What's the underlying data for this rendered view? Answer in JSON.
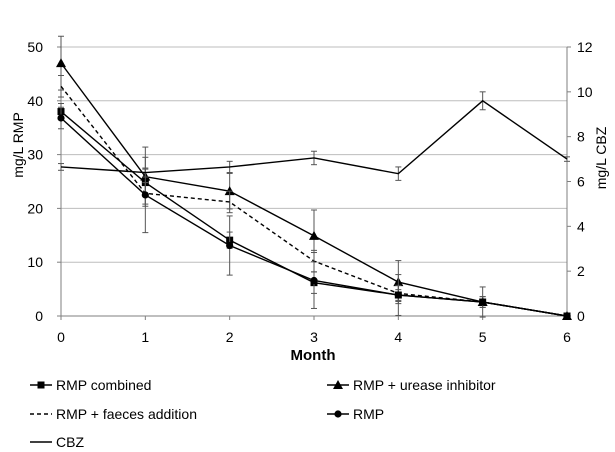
{
  "chart_data": {
    "type": "line",
    "xlabel": "Month",
    "ylabel_left": "mg/L RMP",
    "ylabel_right": "mg/L CBZ",
    "x": [
      0,
      1,
      2,
      3,
      4,
      5,
      6
    ],
    "xlim": [
      0,
      6
    ],
    "ylim_left": [
      0,
      50
    ],
    "ylim_right": [
      0,
      12
    ],
    "yticks_left": [
      0,
      10,
      20,
      30,
      40,
      50
    ],
    "yticks_right": [
      0,
      2,
      4,
      6,
      8,
      10,
      12
    ],
    "grid": true,
    "legend_position": "bottom",
    "series": [
      {
        "name": "RMP combined",
        "axis": "left",
        "marker": "square",
        "dash": false,
        "values": [
          38.0,
          24.8,
          14.1,
          6.2,
          3.9,
          2.6,
          0.0
        ],
        "errors": [
          1.5,
          2.5,
          1.5,
          2.0,
          1.0,
          0.5,
          0.0
        ]
      },
      {
        "name": "RMP + urease inhibitor",
        "axis": "left",
        "marker": "triangle",
        "dash": false,
        "values": [
          47.0,
          25.9,
          23.2,
          14.9,
          6.3,
          2.6,
          0.0
        ],
        "errors": [
          5.0,
          5.5,
          3.3,
          4.8,
          4.0,
          2.8,
          0.0
        ]
      },
      {
        "name": "RMP + faeces addition",
        "axis": "left",
        "marker": "none",
        "dash": true,
        "values": [
          42.7,
          22.8,
          21.2,
          10.2,
          4.2,
          2.6,
          0.0
        ],
        "errors": [
          2.0,
          2.0,
          2.0,
          2.0,
          1.5,
          1.0,
          0.0
        ]
      },
      {
        "name": "RMP",
        "axis": "left",
        "marker": "circle",
        "dash": false,
        "values": [
          36.8,
          22.5,
          13.1,
          6.6,
          3.9,
          2.6,
          0.0
        ],
        "errors": [
          2.0,
          7.0,
          5.5,
          5.2,
          3.8,
          1.0,
          0.0
        ]
      },
      {
        "name": "CBZ",
        "axis": "right",
        "marker": "none",
        "dash": false,
        "values": [
          6.65,
          6.4,
          6.65,
          7.05,
          6.35,
          9.6,
          7.0
        ],
        "errors": [
          0.15,
          0.2,
          0.25,
          0.3,
          0.3,
          0.4,
          0.1
        ]
      }
    ]
  }
}
